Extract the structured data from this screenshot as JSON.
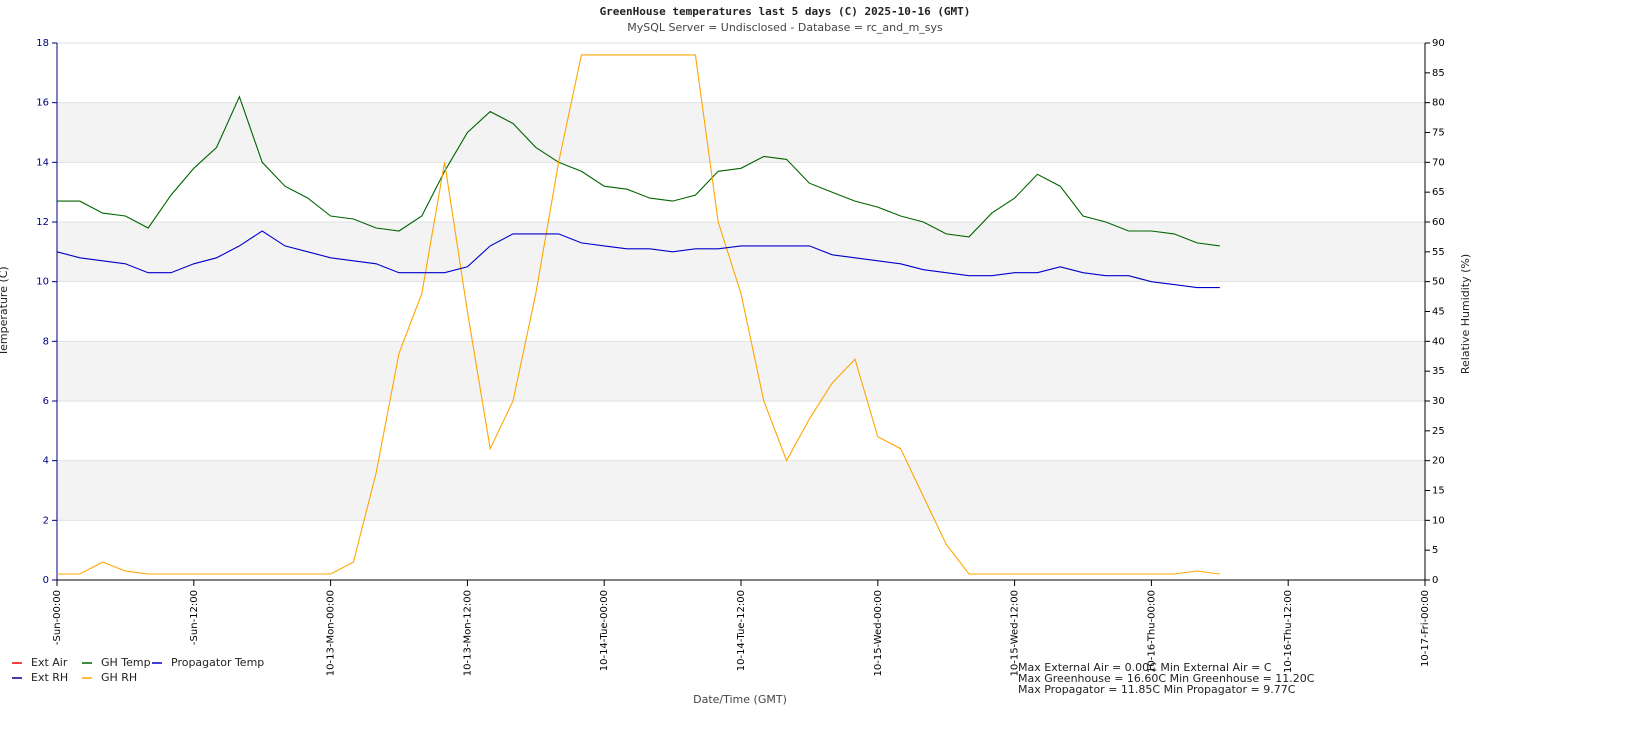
{
  "chart_data": {
    "type": "line",
    "title": "GreenHouse temperatures last 5     days (C) 2025-10-16 (GMT)",
    "subtitle": "MySQL Server = Undisclosed - Database = rc_and_m_sys",
    "xlabel": "Date/Time (GMT)",
    "ylabel": "Temperature (C)",
    "y2label": "Relative Humidity (%)",
    "x": [
      0,
      2,
      4,
      6,
      8,
      10,
      12,
      14,
      16,
      18,
      20,
      22,
      24,
      26,
      28,
      30,
      32,
      34,
      36,
      38,
      40,
      42,
      44,
      46,
      48,
      50,
      52,
      54,
      56,
      58,
      60,
      62,
      64,
      66,
      68,
      70,
      72,
      74,
      76,
      78,
      80,
      82,
      84,
      86,
      88,
      90,
      92,
      94,
      96,
      98,
      100,
      102
    ],
    "xlim": [
      0,
      120
    ],
    "xticks": [
      {
        "value": 0,
        "label": "-Sun-00:00"
      },
      {
        "value": 12,
        "label": "-Sun-12:00"
      },
      {
        "value": 24,
        "label": "10-13-Mon-00:00"
      },
      {
        "value": 36,
        "label": "10-13-Mon-12:00"
      },
      {
        "value": 48,
        "label": "10-14-Tue-00:00"
      },
      {
        "value": 60,
        "label": "10-14-Tue-12:00"
      },
      {
        "value": 72,
        "label": "10-15-Wed-00:00"
      },
      {
        "value": 84,
        "label": "10-15-Wed-12:00"
      },
      {
        "value": 96,
        "label": "10-16-Thu-00:00"
      },
      {
        "value": 108,
        "label": "10-16-Thu-12:00"
      },
      {
        "value": 120,
        "label": "10-17-Fri-00:00"
      }
    ],
    "ylim": [
      0,
      18
    ],
    "yticks": [
      0,
      2,
      4,
      6,
      8,
      10,
      12,
      14,
      16,
      18
    ],
    "y2lim": [
      0,
      90
    ],
    "y2ticks": [
      0,
      5,
      10,
      15,
      20,
      25,
      30,
      35,
      40,
      45,
      50,
      55,
      60,
      65,
      70,
      75,
      80,
      85,
      90
    ],
    "grid": true,
    "legend": "bottom left",
    "series": [
      {
        "name": "Ext Air",
        "color": "#ff0000",
        "values": [
          null,
          null,
          null,
          null,
          null,
          null,
          null,
          null,
          null,
          null,
          null,
          null,
          null,
          null,
          null,
          null,
          null,
          null,
          null,
          null,
          null,
          null,
          null,
          null,
          null,
          null,
          null,
          null,
          null,
          null,
          null,
          null,
          null,
          null,
          null,
          null,
          null,
          null,
          null,
          null,
          null,
          null,
          null,
          null,
          null,
          null,
          null,
          null,
          null,
          null,
          null,
          null
        ]
      },
      {
        "name": "Ext RH",
        "color": "#000080",
        "axis": "y2",
        "values": [
          null,
          null,
          null,
          null,
          null,
          null,
          null,
          null,
          null,
          null,
          null,
          null,
          null,
          null,
          null,
          null,
          null,
          null,
          null,
          null,
          null,
          null,
          null,
          null,
          null,
          null,
          null,
          null,
          null,
          null,
          null,
          null,
          null,
          null,
          null,
          null,
          null,
          null,
          null,
          null,
          null,
          null,
          null,
          null,
          null,
          null,
          null,
          null,
          null,
          null,
          null,
          null
        ]
      },
      {
        "name": "GH Temp",
        "color": "#006400",
        "values": [
          12.7,
          12.7,
          12.3,
          12.2,
          11.8,
          12.9,
          13.8,
          14.5,
          16.2,
          14.0,
          13.2,
          12.8,
          12.2,
          12.1,
          11.8,
          11.7,
          12.2,
          13.7,
          15.0,
          15.7,
          15.3,
          14.5,
          14.0,
          13.7,
          13.2,
          13.1,
          12.8,
          12.7,
          12.9,
          13.7,
          13.8,
          14.2,
          14.1,
          13.3,
          13.0,
          12.7,
          12.5,
          12.2,
          12.0,
          11.6,
          11.5,
          12.3,
          12.8,
          13.6,
          13.2,
          12.2,
          12.0,
          11.7,
          11.7,
          11.6,
          11.3,
          11.2
        ]
      },
      {
        "name": "GH RH",
        "color": "#ffa500",
        "axis": "y2",
        "values": [
          1,
          1,
          3,
          1.5,
          1,
          1,
          1,
          1,
          1,
          1,
          1,
          1,
          1,
          3,
          18,
          38,
          48,
          70,
          45,
          22,
          30,
          48,
          70,
          88,
          88,
          88,
          88,
          88,
          88,
          60,
          48,
          30,
          20,
          27,
          33,
          37,
          24,
          22,
          14,
          6,
          1,
          1,
          1,
          1,
          1,
          1,
          1,
          1,
          1,
          1,
          1.5,
          1
        ]
      },
      {
        "name": "Propagator Temp",
        "color": "#0000cc",
        "values": [
          11.0,
          10.8,
          10.7,
          10.6,
          10.3,
          10.3,
          10.6,
          10.8,
          11.2,
          11.7,
          11.2,
          11.0,
          10.8,
          10.7,
          10.6,
          10.3,
          10.3,
          10.3,
          10.5,
          11.2,
          11.6,
          11.6,
          11.6,
          11.3,
          11.2,
          11.1,
          11.1,
          11.0,
          11.1,
          11.1,
          11.2,
          11.2,
          11.2,
          11.2,
          10.9,
          10.8,
          10.7,
          10.6,
          10.4,
          10.3,
          10.2,
          10.2,
          10.3,
          10.3,
          10.5,
          10.3,
          10.2,
          10.2,
          10.0,
          9.9,
          9.8,
          9.8
        ]
      }
    ],
    "annotations": [
      "Max External Air = 0.00C Min External Air = C",
      "Max Greenhouse = 16.60C Min Greenhouse = 11.20C",
      "Max Propagator = 11.85C Min Propagator = 9.77C"
    ]
  }
}
